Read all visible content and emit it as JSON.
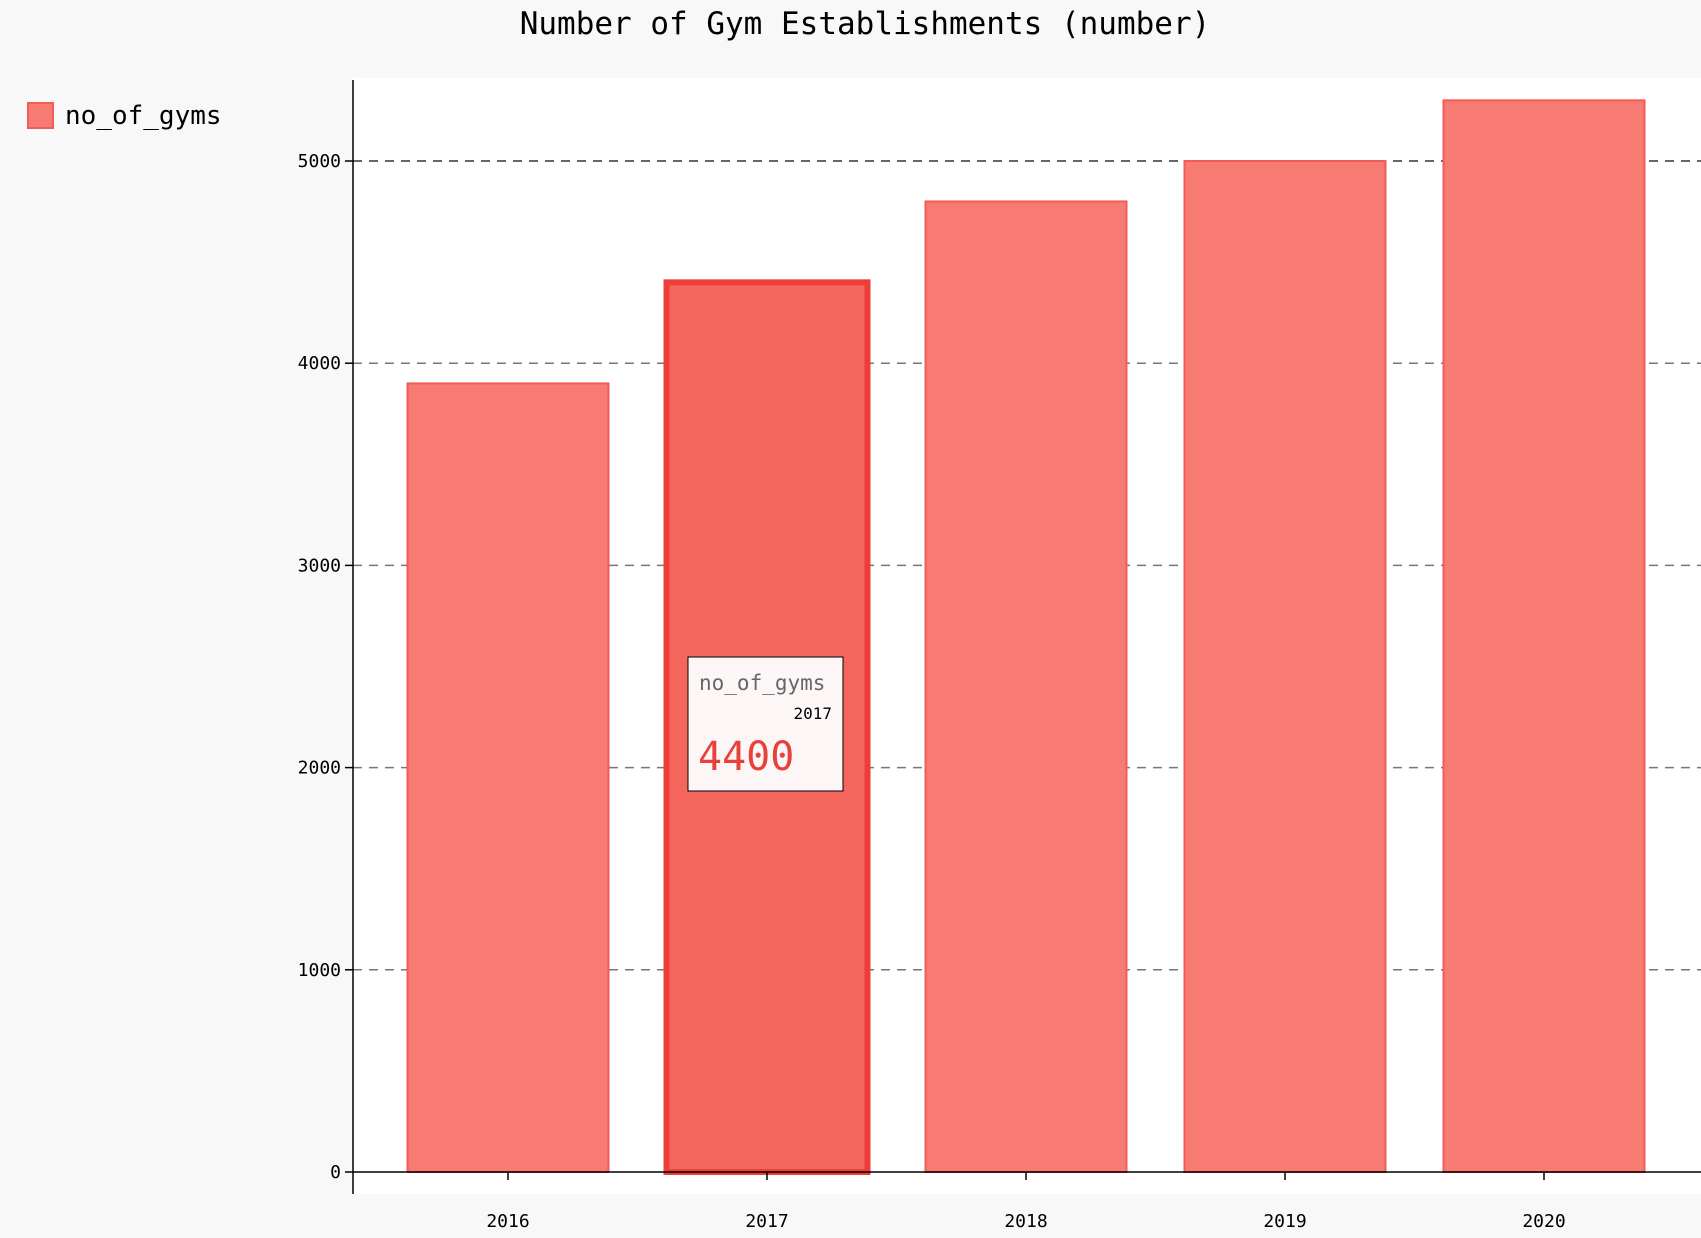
{
  "chart_data": {
    "type": "bar",
    "title": "Number of Gym Establishments (number)",
    "categories": [
      "2016",
      "2017",
      "2018",
      "2019",
      "2020"
    ],
    "series": [
      {
        "name": "no_of_gyms",
        "values": [
          3900,
          4400,
          4800,
          5000,
          5300
        ]
      }
    ],
    "ylim": [
      0,
      5400
    ],
    "yticks": [
      0,
      1000,
      2000,
      3000,
      4000,
      5000
    ],
    "grid": true,
    "legend_position": "top-left",
    "colors": {
      "bar_fill": "#f77b72",
      "bar_stroke": "#ef5d55",
      "highlight_fill": "#f5675d",
      "highlight_stroke": "#ee3e38",
      "value_text": "#e8413c"
    },
    "tooltip": {
      "series": "no_of_gyms",
      "category": "2017",
      "value": "4400"
    }
  }
}
